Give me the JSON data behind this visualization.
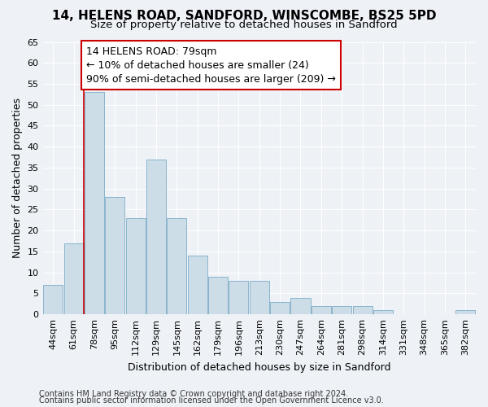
{
  "title": "14, HELENS ROAD, SANDFORD, WINSCOMBE, BS25 5PD",
  "subtitle": "Size of property relative to detached houses in Sandford",
  "xlabel": "Distribution of detached houses by size in Sandford",
  "ylabel": "Number of detached properties",
  "categories": [
    "44sqm",
    "61sqm",
    "78sqm",
    "95sqm",
    "112sqm",
    "129sqm",
    "145sqm",
    "162sqm",
    "179sqm",
    "196sqm",
    "213sqm",
    "230sqm",
    "247sqm",
    "264sqm",
    "281sqm",
    "298sqm",
    "314sqm",
    "331sqm",
    "348sqm",
    "365sqm",
    "382sqm"
  ],
  "values": [
    7,
    17,
    53,
    28,
    23,
    37,
    23,
    14,
    9,
    8,
    8,
    3,
    4,
    2,
    2,
    2,
    1,
    0,
    0,
    0,
    1
  ],
  "bar_color": "#ccdde8",
  "bar_edge_color": "#8ab4cc",
  "vline_index": 2,
  "vline_color": "#cc0000",
  "annotation_line1": "14 HELENS ROAD: 79sqm",
  "annotation_line2": "← 10% of detached houses are smaller (24)",
  "annotation_line3": "90% of semi-detached houses are larger (209) →",
  "annotation_box_facecolor": "#ffffff",
  "annotation_box_edgecolor": "#cc0000",
  "ylim": [
    0,
    65
  ],
  "yticks": [
    0,
    5,
    10,
    15,
    20,
    25,
    30,
    35,
    40,
    45,
    50,
    55,
    60,
    65
  ],
  "footnote1": "Contains HM Land Registry data © Crown copyright and database right 2024.",
  "footnote2": "Contains public sector information licensed under the Open Government Licence v3.0.",
  "background_color": "#eef2f7",
  "grid_color": "#ffffff",
  "title_fontsize": 11,
  "subtitle_fontsize": 9.5,
  "axis_label_fontsize": 9,
  "tick_fontsize": 8,
  "annotation_fontsize": 9,
  "footnote_fontsize": 7
}
